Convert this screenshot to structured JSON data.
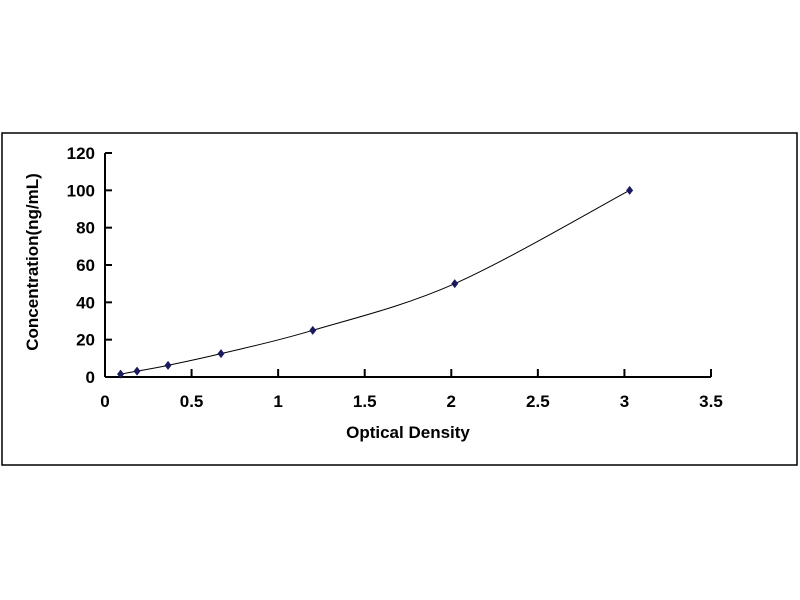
{
  "chart_data": {
    "type": "scatter",
    "xlabel": "Optical Density",
    "ylabel": "Concentration(ng/mL)",
    "xlim": [
      0,
      3.5
    ],
    "ylim": [
      0,
      120
    ],
    "xticks": [
      "0",
      "0.5",
      "1",
      "1.5",
      "2",
      "2.5",
      "3",
      "3.5"
    ],
    "yticks": [
      "0",
      "20",
      "40",
      "60",
      "80",
      "100",
      "120"
    ],
    "grid": false,
    "trendline": "smooth curve through points",
    "marker": "diamond",
    "colors": {
      "marker": "#1a1a5e",
      "line": "#000000"
    },
    "series": [
      {
        "x": [
          0.09,
          0.185,
          0.364,
          0.67,
          1.2,
          2.02,
          3.03
        ],
        "y": [
          1.56,
          3.13,
          6.25,
          12.5,
          25,
          50,
          100
        ]
      }
    ]
  }
}
